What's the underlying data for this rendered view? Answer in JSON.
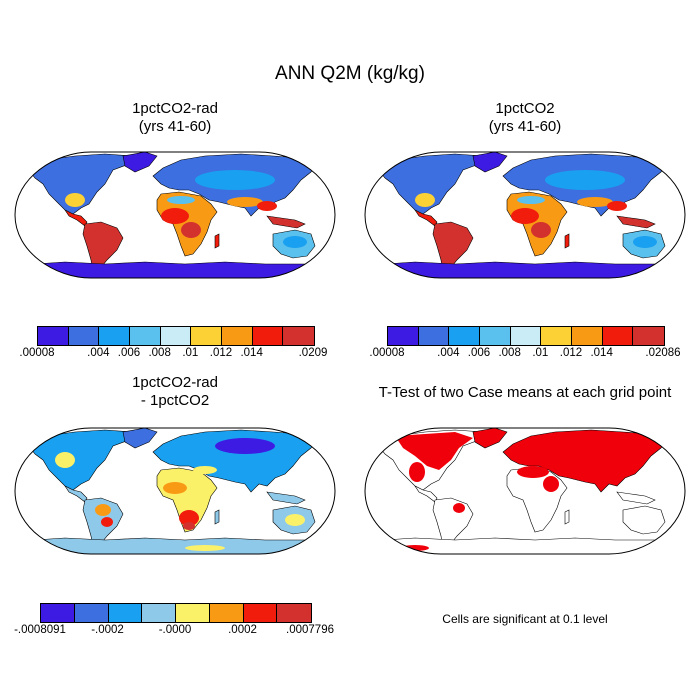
{
  "title": "ANN Q2M (kg/kg)",
  "panels": [
    {
      "title": "1pctCO2-rad\n(yrs 41-60)",
      "type": "mean"
    },
    {
      "title": "1pctCO2\n(yrs 41-60)",
      "type": "mean"
    },
    {
      "title": "1pctCO2-rad\n- 1pctCO2",
      "type": "difference"
    },
    {
      "title": "T-Test of two Case means at each grid point",
      "type": "ttest"
    }
  ],
  "colorbars": {
    "cb1": {
      "colors": [
        "#3d1be3",
        "#3d6fe0",
        "#1aa0f0",
        "#5ac0ee",
        "#c9ecf7",
        "#fbd136",
        "#f99a15",
        "#f21c0c",
        "#d3312d"
      ],
      "labels": [
        ".00008",
        ".004",
        ".006",
        ".008",
        ".01",
        ".012",
        ".014",
        ".0209"
      ],
      "label_positions": [
        0,
        2,
        3,
        4,
        5,
        6,
        7,
        9
      ]
    },
    "cb2": {
      "colors": [
        "#3d1be3",
        "#3d6fe0",
        "#1aa0f0",
        "#5ac0ee",
        "#c9ecf7",
        "#fbd136",
        "#f99a15",
        "#f21c0c",
        "#d3312d"
      ],
      "labels": [
        ".00008",
        ".004",
        ".006",
        ".008",
        ".01",
        ".012",
        ".014",
        ".02086"
      ],
      "label_positions": [
        0,
        2,
        3,
        4,
        5,
        6,
        7,
        9
      ]
    },
    "cb3": {
      "colors": [
        "#3d1be3",
        "#3d6fe0",
        "#1aa0f0",
        "#8fc9ea",
        "#fbf169",
        "#f99a15",
        "#f21c0c",
        "#d3312d"
      ],
      "labels": [
        "-.0008091",
        "-.0002",
        "-.0000",
        ".0002",
        ".0007796"
      ],
      "label_positions": [
        0,
        2,
        4,
        6,
        8
      ]
    }
  },
  "note": "Cells are significant at 0.1 level",
  "colors": {
    "ocean": "#ffffff",
    "significant": "#f0000a"
  }
}
